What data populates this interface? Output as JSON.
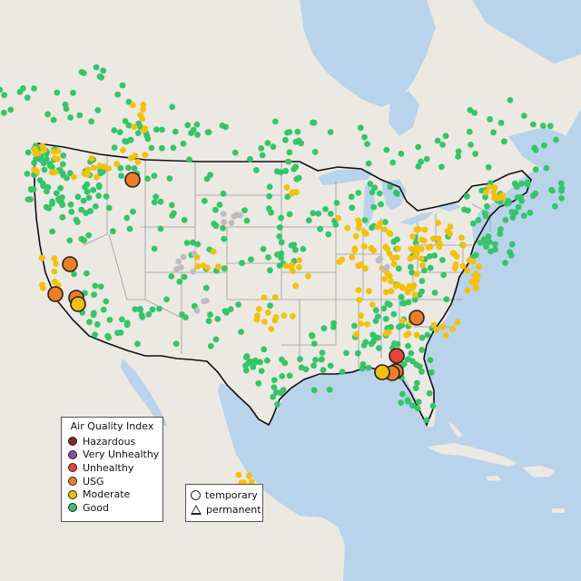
{
  "colors": {
    "water": "#b9d3ea",
    "land": "#ece9e3",
    "land_shade": "#e2ddd3",
    "state_line": "#9a9a9a",
    "country_line": "#111111",
    "hazardous": "#7e2b1b",
    "very_unhealthy": "#8f4fa0",
    "unhealthy": "#e8443a",
    "usg": "#ec7f25",
    "moderate": "#f2c00d",
    "good": "#36c46a",
    "no_data": "#bdbdbd"
  },
  "legend": {
    "title": "Air Quality Index",
    "items": [
      {
        "label": "Hazardous",
        "color": "#7e2b1b"
      },
      {
        "label": "Very Unhealthy",
        "color": "#8f4fa0"
      },
      {
        "label": "Unhealthy",
        "color": "#e8443a"
      },
      {
        "label": "USG",
        "color": "#ec7f25"
      },
      {
        "label": "Moderate",
        "color": "#f2c00d"
      },
      {
        "label": "Good",
        "color": "#36c46a"
      }
    ]
  },
  "monitor_types": {
    "items": [
      {
        "label": "temporary",
        "shape": "circle"
      },
      {
        "label": "permanent",
        "shape": "triangle"
      }
    ]
  },
  "highlighted_monitors": [
    {
      "category": "usg",
      "type": "temporary",
      "location": "Western Montana"
    },
    {
      "category": "usg",
      "type": "temporary",
      "location": "Northern California / Reno area"
    },
    {
      "category": "usg",
      "type": "temporary",
      "location": "San Francisco Bay Area"
    },
    {
      "category": "usg",
      "type": "temporary",
      "location": "Central California"
    },
    {
      "category": "moderate",
      "type": "temporary",
      "location": "Central California"
    },
    {
      "category": "usg",
      "type": "temporary",
      "location": "Western North Carolina"
    },
    {
      "category": "unhealthy",
      "type": "temporary",
      "location": "Southern Georgia"
    },
    {
      "category": "usg",
      "type": "temporary",
      "location": "Southern Georgia / North Florida"
    },
    {
      "category": "usg",
      "type": "temporary",
      "location": "Southern Georgia / North Florida"
    },
    {
      "category": "moderate",
      "type": "temporary",
      "location": "Florida Panhandle"
    }
  ]
}
